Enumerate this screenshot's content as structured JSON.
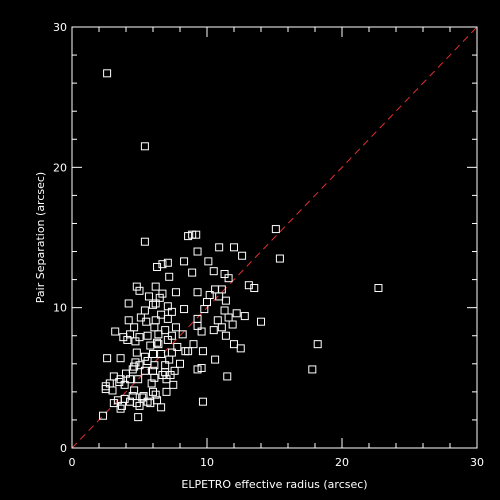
{
  "chart_data": {
    "type": "scatter",
    "title": "",
    "xlabel": "ELPETRO effective radius (arcsec)",
    "ylabel": "Pair Separation (arcsec)",
    "xlim": [
      0,
      30
    ],
    "ylim": [
      0,
      30
    ],
    "xticks": [
      "0",
      "10",
      "20",
      "30"
    ],
    "yticks": [
      "0",
      "10",
      "20",
      "30"
    ],
    "grid": false,
    "legend": "none",
    "marker": "open-square",
    "colors": {
      "background": "#000000",
      "axes": "#ffffff",
      "points": "#ffffff",
      "reference_line": "#e03030"
    },
    "reference_line": {
      "style": "dashed",
      "from": [
        0,
        0
      ],
      "to": [
        30,
        30
      ]
    },
    "points": [
      [
        2.6,
        26.7
      ],
      [
        5.4,
        21.5
      ],
      [
        5.4,
        14.7
      ],
      [
        8.6,
        15.1
      ],
      [
        8.9,
        15.2
      ],
      [
        9.2,
        15.2
      ],
      [
        15.1,
        15.6
      ],
      [
        10.9,
        14.3
      ],
      [
        12.0,
        14.3
      ],
      [
        9.3,
        14.0
      ],
      [
        6.7,
        13.1
      ],
      [
        7.1,
        13.2
      ],
      [
        8.3,
        13.3
      ],
      [
        6.3,
        12.9
      ],
      [
        10.1,
        13.3
      ],
      [
        12.6,
        13.7
      ],
      [
        15.4,
        13.5
      ],
      [
        7.2,
        12.2
      ],
      [
        8.9,
        12.5
      ],
      [
        10.5,
        12.6
      ],
      [
        11.3,
        12.4
      ],
      [
        11.6,
        12.1
      ],
      [
        13.1,
        11.6
      ],
      [
        13.5,
        11.4
      ],
      [
        22.7,
        11.4
      ],
      [
        4.8,
        11.5
      ],
      [
        5.0,
        11.2
      ],
      [
        6.2,
        11.5
      ],
      [
        6.7,
        11.0
      ],
      [
        7.7,
        11.1
      ],
      [
        9.3,
        11.1
      ],
      [
        10.6,
        11.3
      ],
      [
        11.1,
        11.3
      ],
      [
        5.7,
        10.8
      ],
      [
        6.5,
        10.7
      ],
      [
        10.2,
        10.9
      ],
      [
        10.9,
        10.8
      ],
      [
        4.2,
        10.3
      ],
      [
        6.2,
        10.3
      ],
      [
        7.1,
        10.1
      ],
      [
        10.0,
        10.4
      ],
      [
        11.4,
        10.5
      ],
      [
        5.4,
        9.8
      ],
      [
        6.0,
        10.2
      ],
      [
        8.3,
        9.9
      ],
      [
        9.8,
        9.9
      ],
      [
        5.1,
        9.3
      ],
      [
        6.6,
        9.5
      ],
      [
        7.4,
        9.7
      ],
      [
        11.3,
        9.8
      ],
      [
        12.2,
        9.6
      ],
      [
        4.2,
        9.1
      ],
      [
        5.5,
        9.0
      ],
      [
        6.2,
        9.1
      ],
      [
        7.1,
        9.2
      ],
      [
        9.3,
        9.2
      ],
      [
        10.8,
        9.1
      ],
      [
        11.6,
        9.3
      ],
      [
        12.8,
        9.4
      ],
      [
        4.6,
        8.6
      ],
      [
        6.1,
        8.6
      ],
      [
        6.9,
        8.4
      ],
      [
        7.7,
        8.6
      ],
      [
        9.3,
        8.7
      ],
      [
        11.1,
        8.6
      ],
      [
        11.9,
        8.8
      ],
      [
        14.0,
        9.0
      ],
      [
        3.2,
        8.3
      ],
      [
        3.8,
        7.9
      ],
      [
        4.3,
        8.1
      ],
      [
        5.0,
        7.9
      ],
      [
        5.6,
        8.0
      ],
      [
        6.4,
        8.1
      ],
      [
        7.4,
        8.0
      ],
      [
        8.2,
        8.1
      ],
      [
        9.6,
        8.3
      ],
      [
        10.5,
        8.4
      ],
      [
        11.4,
        8.0
      ],
      [
        4.1,
        7.7
      ],
      [
        4.7,
        7.6
      ],
      [
        5.8,
        7.3
      ],
      [
        6.3,
        7.5
      ],
      [
        7.1,
        7.7
      ],
      [
        7.8,
        7.2
      ],
      [
        9.0,
        7.4
      ],
      [
        12.0,
        7.4
      ],
      [
        12.5,
        7.1
      ],
      [
        18.2,
        7.4
      ],
      [
        2.6,
        6.4
      ],
      [
        3.6,
        6.4
      ],
      [
        4.8,
        6.8
      ],
      [
        5.4,
        6.5
      ],
      [
        6.0,
        6.7
      ],
      [
        6.6,
        6.7
      ],
      [
        7.4,
        6.8
      ],
      [
        8.4,
        6.9
      ],
      [
        9.7,
        6.9
      ],
      [
        4.7,
        6.1
      ],
      [
        5.0,
        5.9
      ],
      [
        5.6,
        6.2
      ],
      [
        6.1,
        5.9
      ],
      [
        6.9,
        5.9
      ],
      [
        7.2,
        6.3
      ],
      [
        8.6,
        6.9
      ],
      [
        10.6,
        6.3
      ],
      [
        4.0,
        5.3
      ],
      [
        4.5,
        5.6
      ],
      [
        5.4,
        5.5
      ],
      [
        6.0,
        5.5
      ],
      [
        6.9,
        5.4
      ],
      [
        7.6,
        5.5
      ],
      [
        9.3,
        5.6
      ],
      [
        9.6,
        5.7
      ],
      [
        17.8,
        5.6
      ],
      [
        3.1,
        5.1
      ],
      [
        3.5,
        4.7
      ],
      [
        4.3,
        4.9
      ],
      [
        4.9,
        4.9
      ],
      [
        6.1,
        5.0
      ],
      [
        7.0,
        4.9
      ],
      [
        7.3,
        5.2
      ],
      [
        11.5,
        5.1
      ],
      [
        2.5,
        4.4
      ],
      [
        2.8,
        4.6
      ],
      [
        3.6,
        4.9
      ],
      [
        3.9,
        4.5
      ],
      [
        4.6,
        4.1
      ],
      [
        5.9,
        4.6
      ],
      [
        7.5,
        4.5
      ],
      [
        2.5,
        4.2
      ],
      [
        3.4,
        3.4
      ],
      [
        3.9,
        3.5
      ],
      [
        4.5,
        3.7
      ],
      [
        5.3,
        3.7
      ],
      [
        6.2,
        3.8
      ],
      [
        7.0,
        4.0
      ],
      [
        3.1,
        3.2
      ],
      [
        3.7,
        3.0
      ],
      [
        4.3,
        3.3
      ],
      [
        5.0,
        3.0
      ],
      [
        5.6,
        3.3
      ],
      [
        6.3,
        3.4
      ],
      [
        4.8,
        3.2
      ],
      [
        2.3,
        2.3
      ],
      [
        3.6,
        2.8
      ],
      [
        4.9,
        2.2
      ],
      [
        5.8,
        3.2
      ],
      [
        6.6,
        2.9
      ],
      [
        9.7,
        3.3
      ],
      [
        5.2,
        3.6
      ],
      [
        6.0,
        4.0
      ],
      [
        6.4,
        7.4
      ],
      [
        6.7,
        5.2
      ],
      [
        4.6,
        5.8
      ],
      [
        3.0,
        4.1
      ],
      [
        8.0,
        6.0
      ]
    ]
  }
}
